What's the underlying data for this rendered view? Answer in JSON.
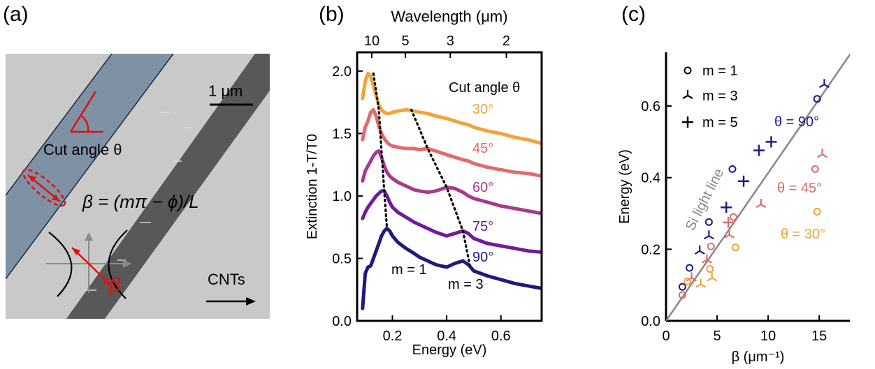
{
  "panels": {
    "a": {
      "label": "(a)",
      "scale_bar": "1 μm",
      "cut_angle": "Cut angle θ",
      "beta_formula": "β = (mπ − ϕ)/L",
      "beta_symbol": "β",
      "cnts": "CNTs"
    },
    "b": {
      "label": "(b)",
      "top_axis_label": "Wavelength (μm)",
      "top_ticks": [
        "10",
        "5",
        "3",
        "2"
      ],
      "legend_title": "Cut angle θ",
      "annot_m1": "m = 1",
      "annot_m3": "m = 3"
    },
    "c": {
      "label": "(c)",
      "light_line_label": "Si light line",
      "legend": [
        "m = 1",
        "m = 3",
        "m = 5"
      ],
      "annot_90": "θ = 90°",
      "annot_45": "θ = 45°",
      "annot_30": "θ = 30°"
    }
  },
  "chart_data": [
    {
      "panel": "b",
      "type": "line",
      "xlabel": "Energy (eV)",
      "ylabel": "Extinction 1-T/T0",
      "xlim": [
        0.07,
        0.75
      ],
      "ylim": [
        0.0,
        2.15
      ],
      "xticks": [
        "0.2",
        "0.4",
        "0.6"
      ],
      "yticks": [
        "0.0",
        "0.5",
        "1.0",
        "1.5",
        "2.0"
      ],
      "top_axis": {
        "label": "Wavelength (μm)",
        "values_um": [
          10,
          5,
          3,
          2
        ]
      },
      "x": [
        0.09,
        0.1,
        0.11,
        0.12,
        0.13,
        0.14,
        0.15,
        0.16,
        0.17,
        0.18,
        0.19,
        0.2,
        0.22,
        0.25,
        0.28,
        0.3,
        0.33,
        0.36,
        0.4,
        0.43,
        0.46,
        0.48,
        0.5,
        0.55,
        0.6,
        0.65,
        0.7,
        0.75
      ],
      "series": [
        {
          "name": "30°",
          "color": "#f2a33a",
          "values": [
            1.78,
            1.92,
            1.98,
            1.96,
            1.88,
            1.8,
            1.73,
            1.69,
            1.67,
            1.66,
            1.66,
            1.67,
            1.68,
            1.69,
            1.68,
            1.67,
            1.66,
            1.64,
            1.62,
            1.6,
            1.58,
            1.57,
            1.55,
            1.52,
            1.5,
            1.47,
            1.45,
            1.42
          ]
        },
        {
          "name": "45°",
          "color": "#e06b6b",
          "values": [
            1.45,
            1.55,
            1.6,
            1.67,
            1.69,
            1.64,
            1.56,
            1.5,
            1.46,
            1.43,
            1.41,
            1.4,
            1.39,
            1.38,
            1.38,
            1.37,
            1.38,
            1.36,
            1.33,
            1.31,
            1.29,
            1.28,
            1.26,
            1.23,
            1.21,
            1.19,
            1.18,
            1.16
          ]
        },
        {
          "name": "60°",
          "color": "#a63a8f",
          "values": [
            1.12,
            1.2,
            1.24,
            1.28,
            1.32,
            1.35,
            1.36,
            1.31,
            1.24,
            1.19,
            1.16,
            1.14,
            1.11,
            1.08,
            1.05,
            1.04,
            1.03,
            1.04,
            1.07,
            1.06,
            1.03,
            1.0,
            0.98,
            0.95,
            0.92,
            0.9,
            0.88,
            0.86
          ]
        },
        {
          "name": "75°",
          "color": "#6f1c9a",
          "values": [
            0.82,
            0.87,
            0.91,
            0.94,
            0.97,
            1.0,
            1.02,
            1.04,
            1.04,
            1.0,
            0.95,
            0.91,
            0.87,
            0.83,
            0.79,
            0.77,
            0.74,
            0.71,
            0.68,
            0.7,
            0.72,
            0.7,
            0.66,
            0.62,
            0.6,
            0.58,
            0.56,
            0.55
          ]
        },
        {
          "name": "90°",
          "color": "#1f1a7d",
          "values": [
            0.1,
            0.38,
            0.43,
            0.44,
            0.5,
            0.56,
            0.62,
            0.68,
            0.72,
            0.74,
            0.72,
            0.68,
            0.63,
            0.58,
            0.54,
            0.51,
            0.48,
            0.45,
            0.43,
            0.46,
            0.48,
            0.45,
            0.4,
            0.36,
            0.33,
            0.3,
            0.28,
            0.26
          ]
        }
      ],
      "guides": [
        {
          "name": "m = 1",
          "points": [
            [
              0.13,
              1.98
            ],
            [
              0.15,
              1.69
            ],
            [
              0.16,
              1.36
            ],
            [
              0.17,
              1.04
            ],
            [
              0.18,
              0.74
            ]
          ]
        },
        {
          "name": "m = 3",
          "points": [
            [
              0.27,
              1.69
            ],
            [
              0.33,
              1.38
            ],
            [
              0.4,
              1.07
            ],
            [
              0.46,
              0.72
            ],
            [
              0.485,
              0.45
            ]
          ]
        }
      ]
    },
    {
      "panel": "c",
      "type": "scatter",
      "xlabel": "β (μm⁻¹)",
      "ylabel": "Energy (eV)",
      "xlim": [
        0,
        18
      ],
      "ylim": [
        0,
        0.75
      ],
      "xticks": [
        "0",
        "5",
        "10",
        "15"
      ],
      "yticks": [
        "0.0",
        "0.2",
        "0.4",
        "0.6"
      ],
      "light_line": {
        "slope": 0.0413,
        "color": "#888888"
      },
      "series": [
        {
          "name": "θ = 90°",
          "color": "#1f1a8c",
          "m1": [
            [
              1.6,
              0.095
            ],
            [
              2.3,
              0.148
            ],
            [
              4.2,
              0.276
            ],
            [
              6.5,
              0.424
            ],
            [
              14.8,
              0.62
            ]
          ],
          "m3": [
            [
              3.3,
              0.195
            ],
            [
              4.2,
              0.237
            ],
            [
              15.5,
              0.66
            ]
          ],
          "m5": [
            [
              5.9,
              0.317
            ],
            [
              7.6,
              0.39
            ],
            [
              9.1,
              0.476
            ],
            [
              10.3,
              0.5
            ]
          ]
        },
        {
          "name": "θ = 45°",
          "color": "#e06b6b",
          "m1": [
            [
              1.6,
              0.072
            ],
            [
              4.4,
              0.208
            ],
            [
              6.6,
              0.29
            ],
            [
              14.6,
              0.424
            ]
          ],
          "m3": [
            [
              2.5,
              0.12
            ],
            [
              4.0,
              0.17
            ],
            [
              6.2,
              0.24
            ],
            [
              9.3,
              0.325
            ],
            [
              15.3,
              0.465
            ]
          ],
          "m5": [
            [
              6.1,
              0.275
            ]
          ]
        },
        {
          "name": "θ = 30°",
          "color": "#f2a33a",
          "m1": [
            [
              2.1,
              0.11
            ],
            [
              4.3,
              0.145
            ],
            [
              6.8,
              0.205
            ],
            [
              14.8,
              0.305
            ]
          ],
          "m3": [
            [
              3.4,
              0.102
            ],
            [
              4.5,
              0.12
            ]
          ],
          "m5": []
        }
      ]
    }
  ]
}
